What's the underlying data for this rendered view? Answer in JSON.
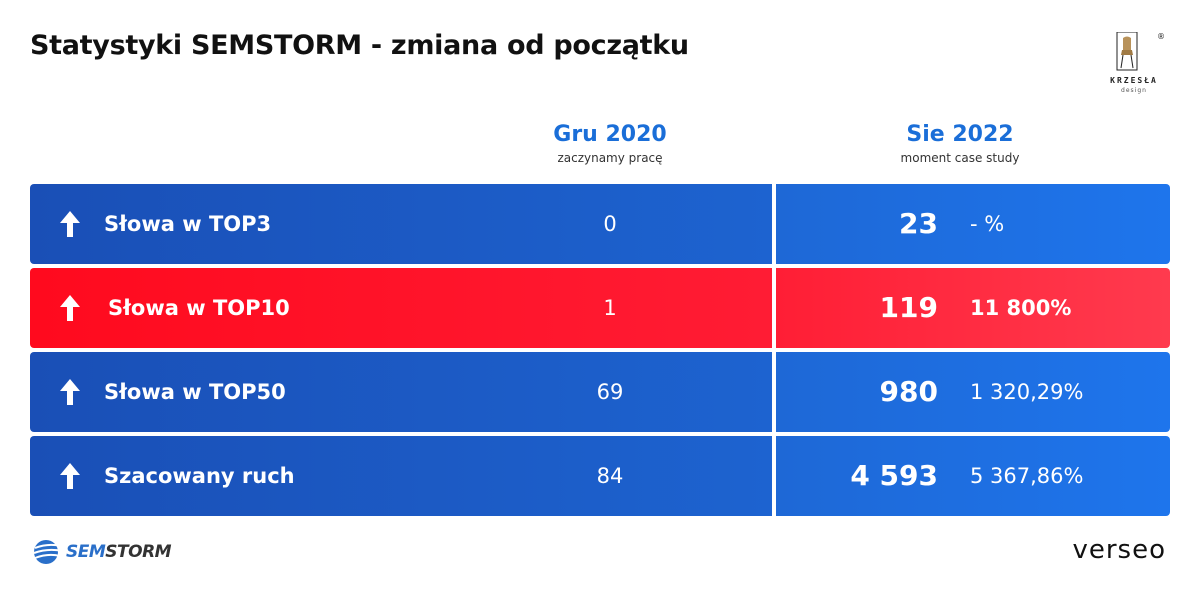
{
  "title": "Statystyki SEMSTORM - zmiana od początku",
  "brand": {
    "client_name": "KRZESŁA",
    "client_sub": "design",
    "client_reg": "®",
    "tool_prefix": "SEM",
    "tool_suffix": "STORM",
    "agency": "verseo"
  },
  "columns": {
    "start": {
      "label": "Gru 2020",
      "sub": "zaczynamy pracę"
    },
    "now": {
      "label": "Sie 2022",
      "sub": "moment case study"
    }
  },
  "rows": [
    {
      "label": "Słowa w TOP3",
      "start": "0",
      "now": "23",
      "change": "- %",
      "theme": "blue"
    },
    {
      "label": "Słowa w TOP10",
      "start": "1",
      "now": "119",
      "change": "11 800%",
      "theme": "red"
    },
    {
      "label": "Słowa w TOP50",
      "start": "69",
      "now": "980",
      "change": "1 320,29%",
      "theme": "blue"
    },
    {
      "label": "Szacowany ruch",
      "start": "84",
      "now": "4 593",
      "change": "5 367,86%",
      "theme": "blue"
    }
  ],
  "colors": {
    "blue": "#1d63d0",
    "red": "#ff1c34",
    "heading_blue": "#1a6ed8"
  },
  "icons": {
    "row_icon": "arrow-up-icon",
    "tool_logo": "semstorm-globe-icon",
    "client_logo": "chair-icon"
  }
}
